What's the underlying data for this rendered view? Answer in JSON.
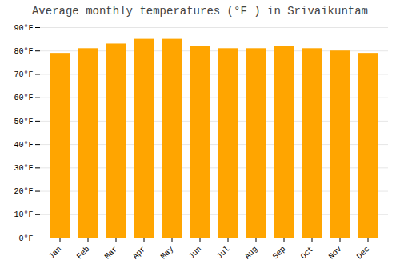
{
  "chart_data": {
    "type": "bar",
    "title": "Average monthly temperatures (°F ) in Srivaikuntam",
    "categories": [
      "Jan",
      "Feb",
      "Mar",
      "Apr",
      "May",
      "Jun",
      "Jul",
      "Aug",
      "Sep",
      "Oct",
      "Nov",
      "Dec"
    ],
    "values": [
      79,
      81,
      83,
      85,
      85,
      82,
      81,
      81,
      82,
      81,
      80,
      79
    ],
    "color": "#FFA500",
    "ylim": [
      0,
      90
    ],
    "yticks": [
      {
        "value": 0,
        "label": "0°F"
      },
      {
        "value": 10,
        "label": "10°F"
      },
      {
        "value": 20,
        "label": "20°F"
      },
      {
        "value": 30,
        "label": "30°F"
      },
      {
        "value": 40,
        "label": "40°F"
      },
      {
        "value": 50,
        "label": "50°F"
      },
      {
        "value": 60,
        "label": "60°F"
      },
      {
        "value": 70,
        "label": "70°F"
      },
      {
        "value": 80,
        "label": "80°F"
      },
      {
        "value": 90,
        "label": "90°F"
      }
    ],
    "grid": true
  }
}
